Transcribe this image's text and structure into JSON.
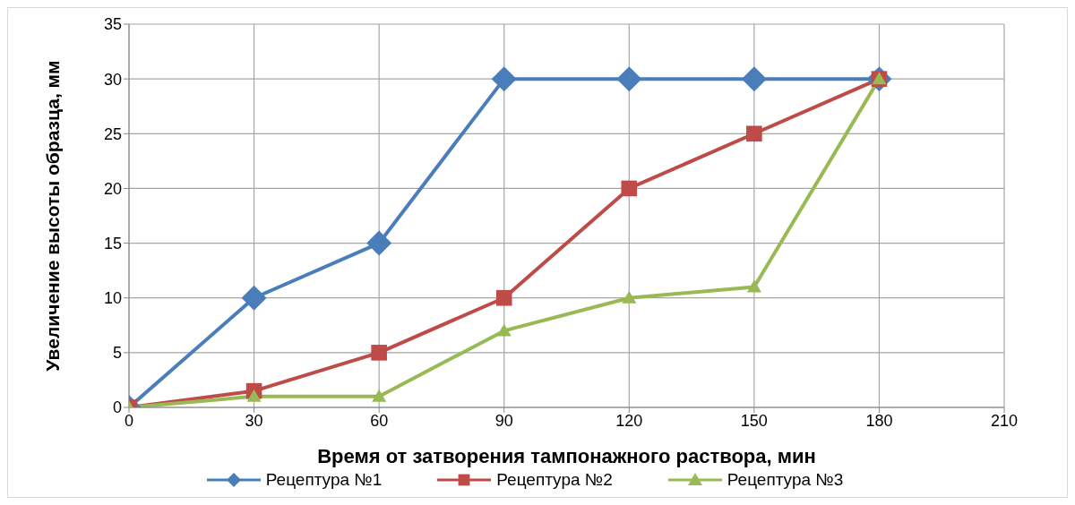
{
  "chart_data": {
    "type": "line",
    "xlabel": "Время от затворения тампонажного раствора, мин",
    "ylabel": "Увеличение высоты образца, мм",
    "x": [
      0,
      30,
      60,
      90,
      120,
      150,
      180
    ],
    "xlim": [
      0,
      210
    ],
    "xticks": [
      0,
      30,
      60,
      90,
      120,
      150,
      180,
      210
    ],
    "ylim": [
      0,
      35
    ],
    "yticks": [
      0,
      5,
      10,
      15,
      20,
      25,
      30,
      35
    ],
    "grid": true,
    "legend": "bottom",
    "series": [
      {
        "name": "Рецептура №1",
        "color": "#4a7ebb",
        "marker": "diamond",
        "values": [
          0,
          10,
          15,
          30,
          30,
          30,
          30
        ]
      },
      {
        "name": "Рецептура №2",
        "color": "#be4b48",
        "marker": "square",
        "values": [
          0,
          1.5,
          5,
          10,
          20,
          25,
          30
        ]
      },
      {
        "name": "Рецептура №3",
        "color": "#98b954",
        "marker": "triangle",
        "values": [
          0,
          1,
          1,
          7,
          10,
          11,
          30
        ]
      }
    ]
  }
}
